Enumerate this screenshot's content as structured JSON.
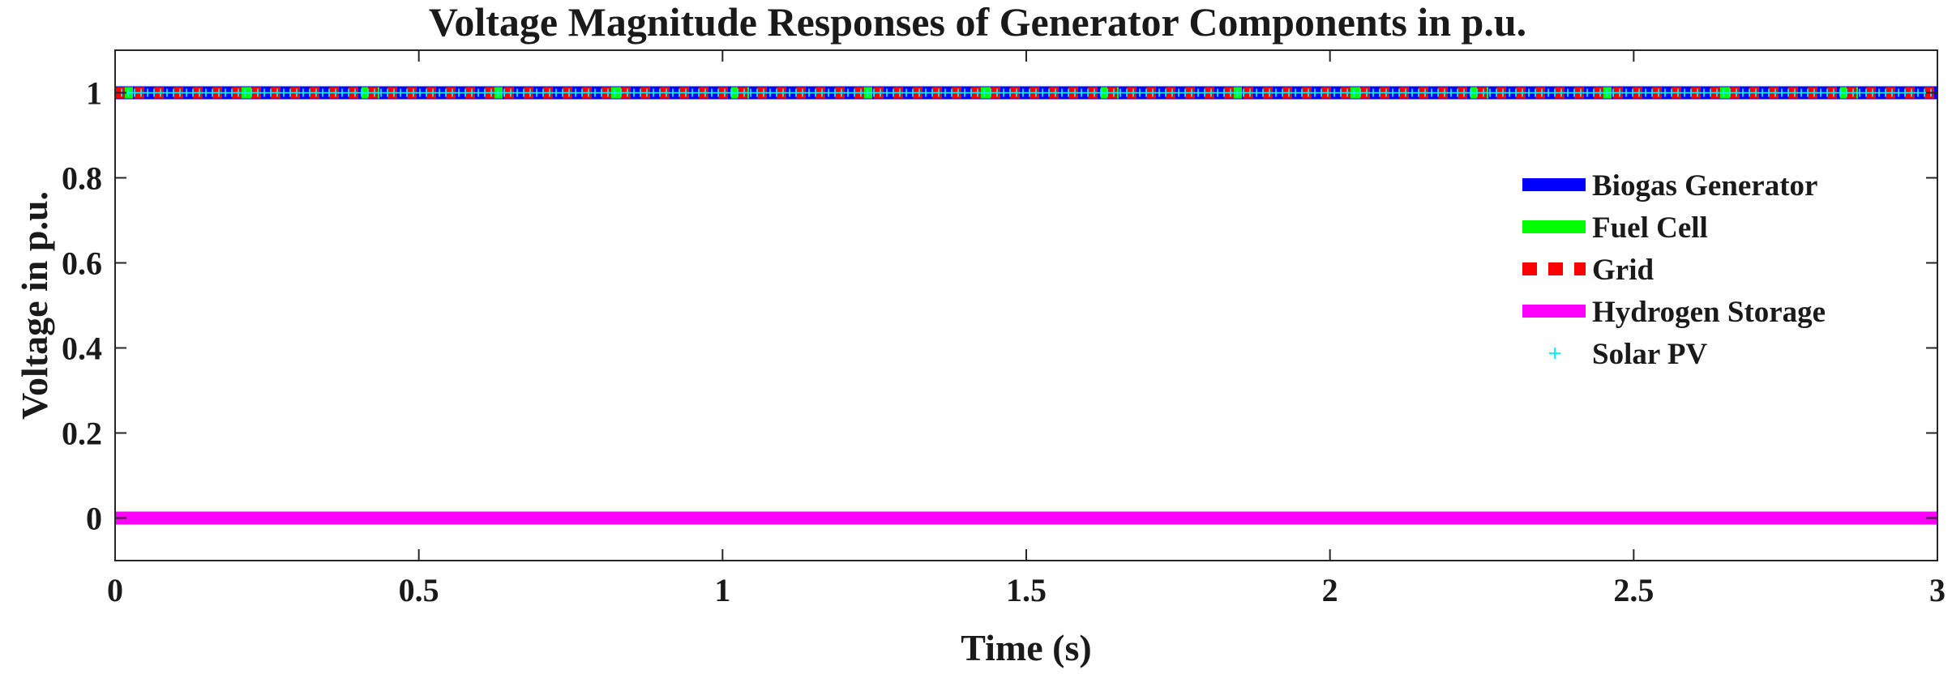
{
  "chart_data": {
    "type": "line",
    "title": "Voltage Magnitude Responses of Generator Components in p.u.",
    "xlabel": "Time (s)",
    "ylabel": "Voltage in p.u.",
    "xlim": [
      0,
      3
    ],
    "ylim": [
      -0.1,
      1.1
    ],
    "xticks": [
      {
        "value": 0,
        "label": "0"
      },
      {
        "value": 0.5,
        "label": "0.5"
      },
      {
        "value": 1,
        "label": "1"
      },
      {
        "value": 1.5,
        "label": "1.5"
      },
      {
        "value": 2,
        "label": "2"
      },
      {
        "value": 2.5,
        "label": "2.5"
      },
      {
        "value": 3,
        "label": "3"
      }
    ],
    "yticks": [
      {
        "value": 0,
        "label": "0"
      },
      {
        "value": 0.2,
        "label": "0.2"
      },
      {
        "value": 0.4,
        "label": "0.4"
      },
      {
        "value": 0.6,
        "label": "0.6"
      },
      {
        "value": 0.8,
        "label": "0.8"
      },
      {
        "value": 1,
        "label": "1"
      }
    ],
    "grid": false,
    "legend_position": "right",
    "series": [
      {
        "name": "Biogas Generator",
        "x": [
          0,
          3
        ],
        "y": [
          1,
          1
        ],
        "color": "#0000ff",
        "style": "solid"
      },
      {
        "name": "Fuel Cell",
        "x": [
          0,
          3
        ],
        "y": [
          1,
          1
        ],
        "color": "#00ff00",
        "style": "dashed"
      },
      {
        "name": "Grid",
        "x": [
          0,
          3
        ],
        "y": [
          1,
          1
        ],
        "color": "#ff0000",
        "style": "dotted"
      },
      {
        "name": "Hydrogen Storage",
        "x": [
          0,
          3
        ],
        "y": [
          0,
          0
        ],
        "color": "#ff00ff",
        "style": "solid"
      },
      {
        "name": "Solar PV",
        "x": [
          0,
          3
        ],
        "y": [
          1,
          1
        ],
        "color": "#00ffff",
        "style": "markers-plus"
      }
    ]
  }
}
